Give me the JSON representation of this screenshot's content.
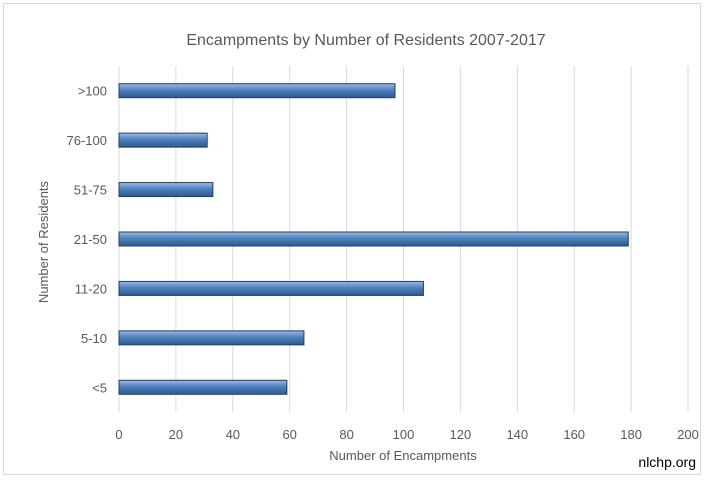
{
  "chart_data": {
    "type": "bar",
    "orientation": "horizontal",
    "title": "Encampments by Number of Residents  2007-2017",
    "xlabel": "Number of Encampments",
    "ylabel": "Number of Residents",
    "categories": [
      ">100",
      "76-100",
      "51-75",
      "21-50",
      "11-20",
      "5-10",
      "<5"
    ],
    "values": [
      97,
      31,
      33,
      179,
      107,
      65,
      59
    ],
    "xlim": [
      0,
      200
    ],
    "xticks": [
      0,
      20,
      40,
      60,
      80,
      100,
      120,
      140,
      160,
      180,
      200
    ],
    "grid": "vertical",
    "legend": "none",
    "colors": {
      "bar_fill": "#4f81bd",
      "bar_light": "#9dbbe5",
      "bar_dark": "#2c5a8f",
      "bar_stroke": "#1f3f66",
      "gridline": "#d9d9d9",
      "text": "#595959"
    }
  },
  "watermark": "nlchp.org"
}
